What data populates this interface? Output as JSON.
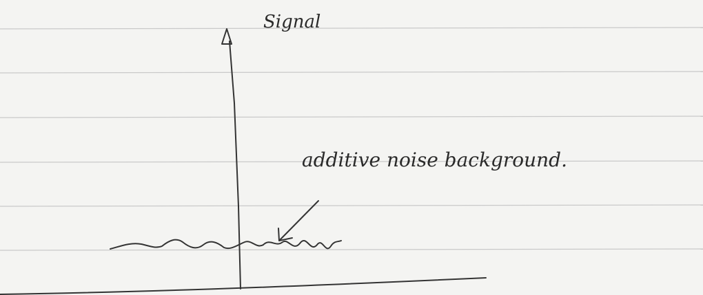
{
  "labels": {
    "y_axis": "Signal",
    "annotation": "additive noise background."
  }
}
